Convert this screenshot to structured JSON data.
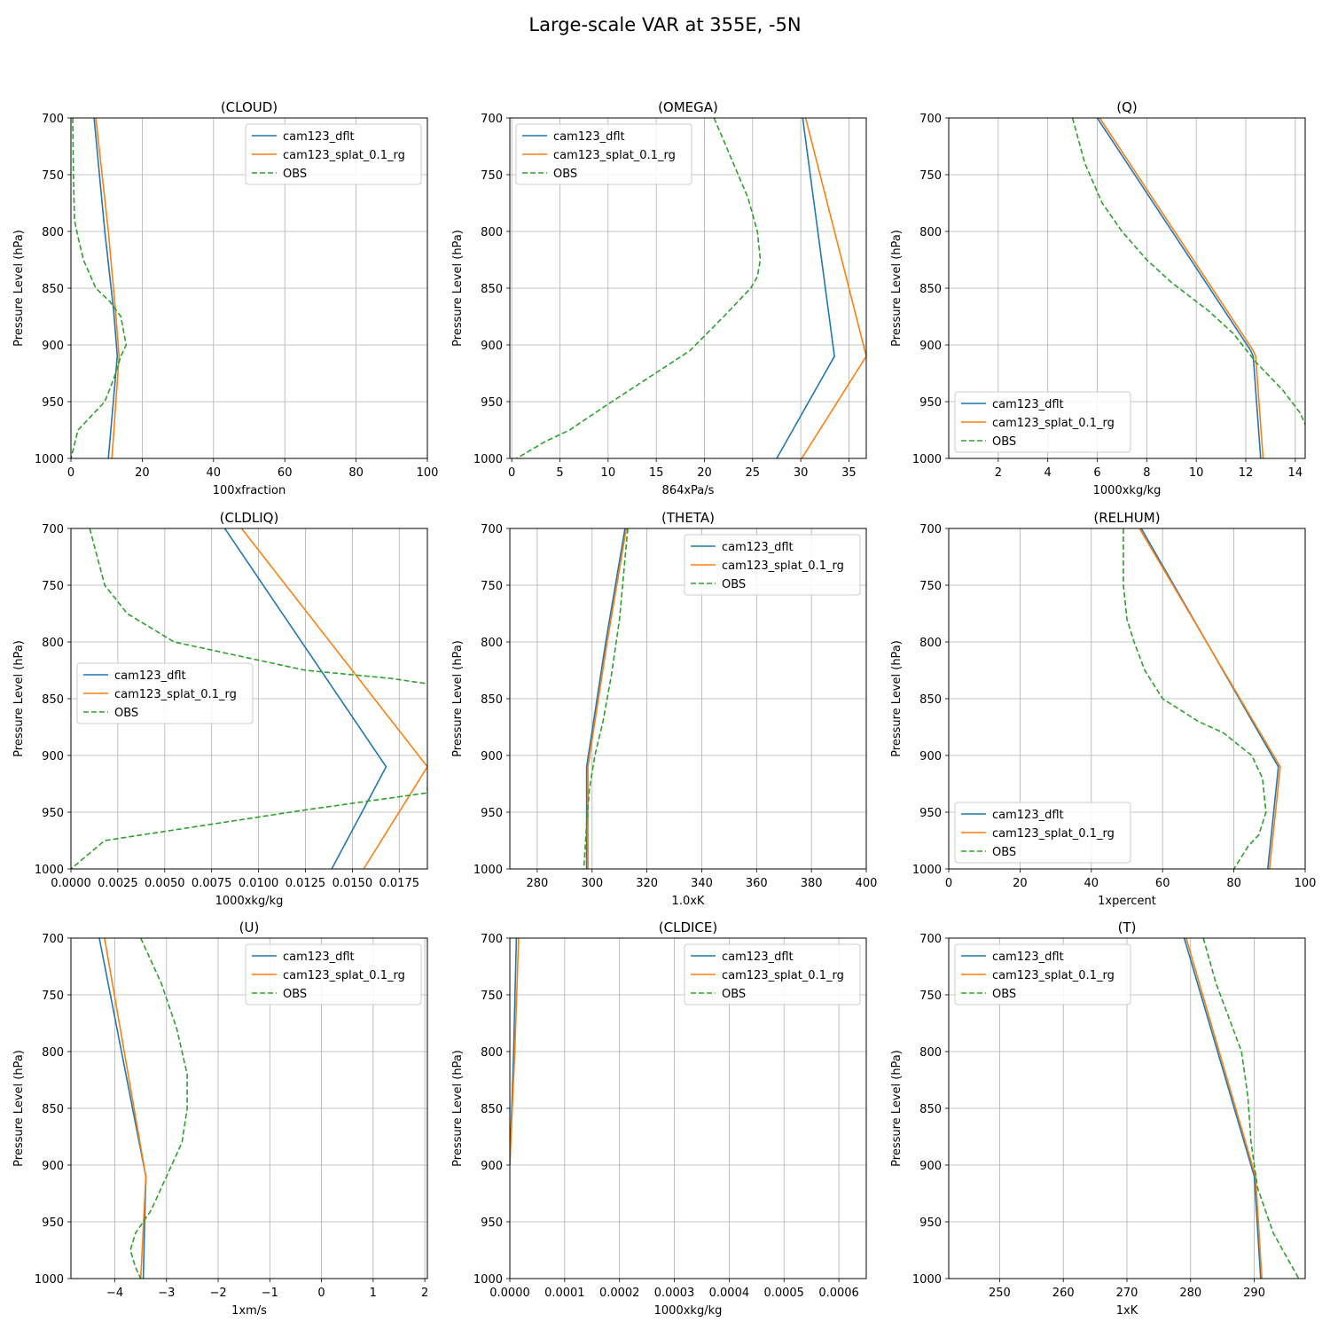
{
  "figure": {
    "title": "Large-scale VAR at 355E, -5N",
    "series_colors": {
      "cam123_dflt": "#1f77b4",
      "cam123_splat_0.1_rg": "#ff7f0e",
      "OBS": "#2ca02c"
    }
  },
  "chart_data": [
    {
      "type": "line",
      "title": "(CLOUD)",
      "xlabel": "100xfraction",
      "ylabel": "Pressure Level (hPa)",
      "xlim": [
        0,
        100
      ],
      "ylim": [
        1000,
        700
      ],
      "grid": true,
      "legend": "top-right",
      "xticks": [
        0,
        20,
        40,
        60,
        80,
        100
      ],
      "yticks": [
        700,
        750,
        800,
        850,
        900,
        950,
        1000
      ],
      "series": [
        {
          "name": "cam123_dflt",
          "style": "solid",
          "x": [
            6.5,
            9.5,
            12,
            13,
            10.5
          ],
          "y": [
            700,
            800,
            870,
            910,
            1000
          ]
        },
        {
          "name": "cam123_splat_0.1_rg",
          "style": "solid",
          "x": [
            7,
            10.5,
            12.5,
            13.5,
            11.5
          ],
          "y": [
            700,
            800,
            870,
            910,
            1000
          ]
        },
        {
          "name": "OBS",
          "style": "dashed",
          "x": [
            0.5,
            0.7,
            1,
            2,
            3.5,
            7,
            11,
            14,
            15.5,
            14,
            12,
            9.5,
            5,
            2,
            0
          ],
          "y": [
            700,
            750,
            790,
            805,
            825,
            850,
            862,
            875,
            900,
            910,
            930,
            950,
            965,
            975,
            1000
          ]
        }
      ]
    },
    {
      "type": "line",
      "title": "(OMEGA)",
      "xlabel": "864xPa/s",
      "ylabel": "Pressure Level (hPa)",
      "xlim": [
        -0.2,
        36.8
      ],
      "ylim": [
        1000,
        700
      ],
      "grid": true,
      "legend": "top-left",
      "xticks": [
        0,
        5,
        10,
        15,
        20,
        25,
        30,
        35
      ],
      "yticks": [
        700,
        750,
        800,
        850,
        900,
        950,
        1000
      ],
      "series": [
        {
          "name": "cam123_dflt",
          "style": "solid",
          "x": [
            30.2,
            33.5,
            27.5
          ],
          "y": [
            700,
            910,
            1000
          ]
        },
        {
          "name": "cam123_splat_0.1_rg",
          "style": "solid",
          "x": [
            30.5,
            36.8,
            30.1
          ],
          "y": [
            700,
            910,
            1000
          ]
        },
        {
          "name": "OBS",
          "style": "dashed",
          "x": [
            21,
            23,
            24.5,
            25.5,
            25.8,
            25.5,
            24.8,
            22,
            18.5,
            14,
            9.5,
            6,
            3.5,
            0.5
          ],
          "y": [
            700,
            740,
            770,
            800,
            825,
            840,
            850,
            875,
            905,
            930,
            955,
            975,
            985,
            1000
          ]
        }
      ]
    },
    {
      "type": "line",
      "title": "(Q)",
      "xlabel": "1000xkg/kg",
      "ylabel": "Pressure Level (hPa)",
      "xlim": [
        0,
        14.4
      ],
      "ylim": [
        1000,
        700
      ],
      "grid": true,
      "legend": "bottom-left",
      "xticks": [
        2,
        4,
        6,
        8,
        10,
        12,
        14
      ],
      "yticks": [
        700,
        750,
        800,
        850,
        900,
        950,
        1000
      ],
      "series": [
        {
          "name": "cam123_dflt",
          "style": "solid",
          "x": [
            6.0,
            12.2,
            12.3,
            12.6
          ],
          "y": [
            700,
            905,
            910,
            1000
          ]
        },
        {
          "name": "cam123_splat_0.1_rg",
          "style": "solid",
          "x": [
            6.1,
            12.3,
            12.4,
            12.7
          ],
          "y": [
            700,
            905,
            910,
            1000
          ]
        },
        {
          "name": "OBS",
          "style": "dashed",
          "x": [
            5.0,
            5.5,
            6.2,
            7.0,
            8.0,
            9.0,
            10.5,
            11.5,
            12.4,
            13.5,
            14.2,
            14.5
          ],
          "y": [
            700,
            740,
            775,
            800,
            825,
            845,
            870,
            890,
            915,
            940,
            960,
            975
          ]
        }
      ]
    },
    {
      "type": "line",
      "title": "(CLDLIQ)",
      "xlabel": "1000xkg/kg",
      "ylabel": "Pressure Level (hPa)",
      "xlim": [
        0,
        0.019
      ],
      "ylim": [
        1000,
        700
      ],
      "grid": true,
      "legend": "center-left",
      "xticks": [
        0.0,
        0.0025,
        0.005,
        0.0075,
        0.01,
        0.0125,
        0.015,
        0.0175
      ],
      "xticklabels": [
        "0.0000",
        "0.0025",
        "0.0050",
        "0.0075",
        "0.0100",
        "0.0125",
        "0.0150",
        "0.0175"
      ],
      "yticks": [
        700,
        750,
        800,
        850,
        900,
        950,
        1000
      ],
      "series": [
        {
          "name": "cam123_dflt",
          "style": "solid",
          "x": [
            0.0082,
            0.0168,
            0.0139
          ],
          "y": [
            700,
            910,
            1000
          ]
        },
        {
          "name": "cam123_splat_0.1_rg",
          "style": "solid",
          "x": [
            0.0091,
            0.019,
            0.0156
          ],
          "y": [
            700,
            910,
            1000
          ]
        },
        {
          "name": "OBS",
          "style": "dashed",
          "x": [
            0.001,
            0.0018,
            0.003,
            0.0055,
            0.0125,
            0.017,
            0.0191,
            0.019,
            0.0125,
            0.0018,
            0
          ],
          "y": [
            700,
            750,
            775,
            800,
            825,
            832,
            837,
            933,
            948,
            975,
            1000
          ]
        }
      ]
    },
    {
      "type": "line",
      "title": "(THETA)",
      "xlabel": "1.0xK",
      "ylabel": "Pressure Level (hPa)",
      "xlim": [
        270,
        400
      ],
      "ylim": [
        1000,
        700
      ],
      "grid": true,
      "legend": "top-right",
      "xticks": [
        280,
        300,
        320,
        340,
        360,
        380,
        400
      ],
      "yticks": [
        700,
        750,
        800,
        850,
        900,
        950,
        1000
      ],
      "series": [
        {
          "name": "cam123_dflt",
          "style": "solid",
          "x": [
            312,
            305,
            298,
            298
          ],
          "y": [
            700,
            800,
            910,
            1000
          ]
        },
        {
          "name": "cam123_splat_0.1_rg",
          "style": "solid",
          "x": [
            312.5,
            305.5,
            298.5,
            298.5
          ],
          "y": [
            700,
            800,
            910,
            1000
          ]
        },
        {
          "name": "OBS",
          "style": "dashed",
          "x": [
            313,
            310,
            307,
            304,
            301,
            299,
            298,
            297
          ],
          "y": [
            700,
            780,
            830,
            870,
            900,
            930,
            960,
            1000
          ]
        }
      ]
    },
    {
      "type": "line",
      "title": "(RELHUM)",
      "xlabel": "1xpercent",
      "ylabel": "Pressure Level (hPa)",
      "xlim": [
        0,
        100
      ],
      "ylim": [
        1000,
        700
      ],
      "grid": true,
      "legend": "bottom-left",
      "xticks": [
        0,
        20,
        40,
        60,
        80,
        100
      ],
      "yticks": [
        700,
        750,
        800,
        850,
        900,
        950,
        1000
      ],
      "series": [
        {
          "name": "cam123_dflt",
          "style": "solid",
          "x": [
            54,
            92.5,
            89.5
          ],
          "y": [
            700,
            910,
            1000
          ]
        },
        {
          "name": "cam123_splat_0.1_rg",
          "style": "solid",
          "x": [
            53.5,
            93,
            90
          ],
          "y": [
            700,
            910,
            1000
          ]
        },
        {
          "name": "OBS",
          "style": "dashed",
          "x": [
            49,
            49,
            50,
            52,
            55,
            60,
            65,
            70,
            77,
            85,
            88,
            89,
            87,
            84,
            80
          ],
          "y": [
            700,
            750,
            780,
            800,
            825,
            850,
            860,
            870,
            880,
            900,
            920,
            950,
            970,
            980,
            1000
          ]
        }
      ]
    },
    {
      "type": "line",
      "title": "(U)",
      "xlabel": "1xm/s",
      "ylabel": "Pressure Level (hPa)",
      "xlim": [
        -4.85,
        2.05
      ],
      "ylim": [
        1000,
        700
      ],
      "grid": true,
      "legend": "top-right",
      "xticks": [
        -4,
        -3,
        -2,
        -1,
        0,
        1,
        2
      ],
      "yticks": [
        700,
        750,
        800,
        850,
        900,
        950,
        1000
      ],
      "series": [
        {
          "name": "cam123_dflt",
          "style": "solid",
          "x": [
            -4.3,
            -3.4,
            -3.45
          ],
          "y": [
            700,
            910,
            1000
          ]
        },
        {
          "name": "cam123_splat_0.1_rg",
          "style": "solid",
          "x": [
            -4.2,
            -3.4,
            -3.5
          ],
          "y": [
            700,
            910,
            1000
          ]
        },
        {
          "name": "OBS",
          "style": "dashed",
          "x": [
            -3.5,
            -3.1,
            -2.8,
            -2.6,
            -2.6,
            -2.7,
            -3.0,
            -3.3,
            -3.6,
            -3.7,
            -3.6,
            -3.5
          ],
          "y": [
            700,
            740,
            780,
            820,
            850,
            880,
            910,
            940,
            960,
            975,
            990,
            1000
          ]
        }
      ]
    },
    {
      "type": "line",
      "title": "(CLDICE)",
      "xlabel": "1000xkg/kg",
      "ylabel": "Pressure Level (hPa)",
      "xlim": [
        0,
        0.00065
      ],
      "ylim": [
        1000,
        700
      ],
      "grid": true,
      "legend": "top-right",
      "xticks": [
        0,
        0.0001,
        0.0002,
        0.0003,
        0.0004,
        0.0005,
        0.0006
      ],
      "xticklabels": [
        "0.0000",
        "0.0001",
        "0.0002",
        "0.0003",
        "0.0004",
        "0.0005",
        "0.0006"
      ],
      "yticks": [
        700,
        750,
        800,
        850,
        900,
        950,
        1000
      ],
      "series": [
        {
          "name": "cam123_dflt",
          "style": "solid",
          "x": [
            1.2e-05,
            7e-06,
            0.0
          ],
          "y": [
            700,
            800,
            900
          ]
        },
        {
          "name": "cam123_splat_0.1_rg",
          "style": "solid",
          "x": [
            1.6e-05,
            9e-06,
            0.0
          ],
          "y": [
            700,
            800,
            900
          ]
        },
        {
          "name": "OBS",
          "style": "dashed",
          "x": [],
          "y": []
        }
      ]
    },
    {
      "type": "line",
      "title": "(T)",
      "xlabel": "1xK",
      "ylabel": "Pressure Level (hPa)",
      "xlim": [
        242,
        298
      ],
      "ylim": [
        1000,
        700
      ],
      "grid": true,
      "legend": "top-left",
      "xticks": [
        250,
        260,
        270,
        280,
        290
      ],
      "yticks": [
        700,
        750,
        800,
        850,
        900,
        950,
        1000
      ],
      "series": [
        {
          "name": "cam123_dflt",
          "style": "solid",
          "x": [
            279,
            290,
            291
          ],
          "y": [
            700,
            910,
            1000
          ]
        },
        {
          "name": "cam123_splat_0.1_rg",
          "style": "solid",
          "x": [
            279.3,
            290.2,
            291.2
          ],
          "y": [
            700,
            910,
            1000
          ]
        },
        {
          "name": "OBS",
          "style": "dashed",
          "x": [
            282,
            284,
            286,
            288,
            289,
            289.5,
            290.5,
            293,
            297,
            298
          ],
          "y": [
            700,
            740,
            770,
            800,
            840,
            880,
            920,
            960,
            1000,
            1010
          ]
        }
      ]
    }
  ]
}
